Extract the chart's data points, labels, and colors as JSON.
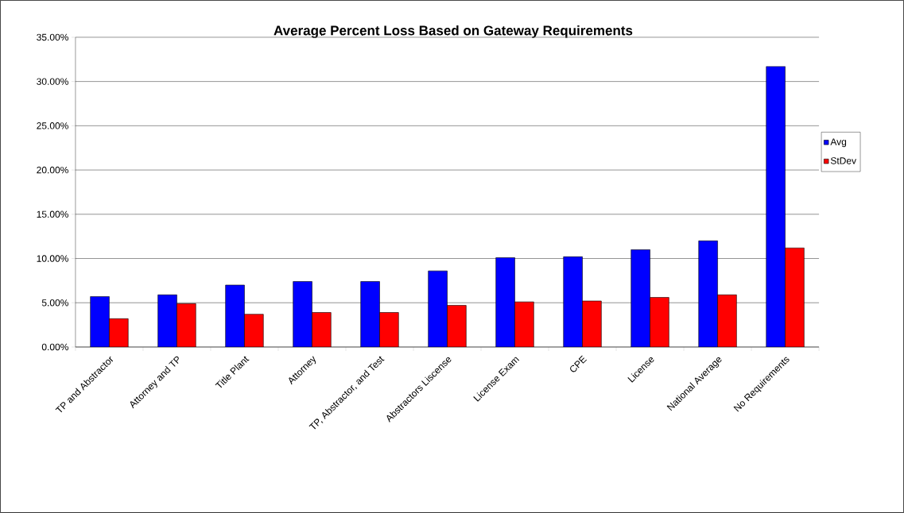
{
  "chart_data": {
    "type": "bar",
    "title": "Average Percent Loss Based on Gateway Requirements",
    "categories": [
      "TP and Abstractor",
      "Attorney and TP",
      "Title Plant",
      "Attorney",
      "TP, Abstractor, and Test",
      "Abstractors Liscense",
      "License Exam",
      "CPE",
      "License",
      "National Average",
      "No Requirements"
    ],
    "series": [
      {
        "name": "Avg",
        "color": "#0000ff",
        "values": [
          0.057,
          0.059,
          0.07,
          0.074,
          0.074,
          0.086,
          0.101,
          0.102,
          0.11,
          0.12,
          0.317
        ]
      },
      {
        "name": "StDev",
        "color": "#ff0000",
        "values": [
          0.032,
          0.049,
          0.037,
          0.039,
          0.039,
          0.047,
          0.051,
          0.052,
          0.056,
          0.059,
          0.112
        ]
      }
    ],
    "ylim": [
      0,
      0.35
    ],
    "yticks": [
      {
        "value": 0,
        "label": "0.00%"
      },
      {
        "value": 0.05,
        "label": "5.00%"
      },
      {
        "value": 0.1,
        "label": "10.00%"
      },
      {
        "value": 0.15,
        "label": "15.00%"
      },
      {
        "value": 0.2,
        "label": "20.00%"
      },
      {
        "value": 0.25,
        "label": "25.00%"
      },
      {
        "value": 0.3,
        "label": "30.00%"
      },
      {
        "value": 0.35,
        "label": "35.00%"
      }
    ],
    "grid": "y",
    "legend": "right"
  }
}
